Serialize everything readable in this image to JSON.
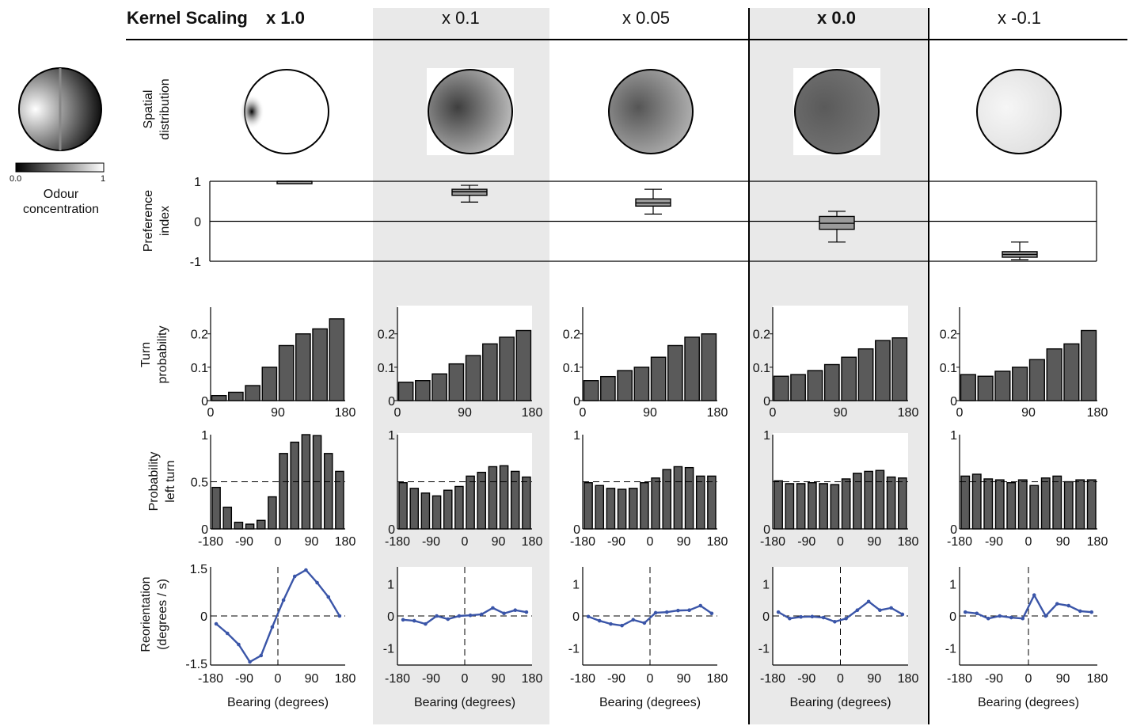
{
  "header": {
    "kernel_scaling_label": "Kernel Scaling",
    "columns": [
      "x 1.0",
      "x 0.1",
      "x 0.05",
      "x 0.0",
      "x -0.1"
    ]
  },
  "legend": {
    "colorbar_min": "0.0",
    "colorbar_max": "1",
    "title_line1": "Odour",
    "title_line2": "concentration"
  },
  "row_labels": {
    "spatial": [
      "Spatial",
      "distribution"
    ],
    "preference": [
      "Preference",
      "index"
    ],
    "turn": [
      "Turn",
      "probability"
    ],
    "left": [
      "Probability",
      "left turn"
    ],
    "reorient": [
      "Reorientation",
      "(degrees / s)"
    ]
  },
  "xlabel_bearing": "Bearing (degrees)",
  "colors": {
    "bar_fill": "#5a5a5a",
    "line_blue": "#3a55a8",
    "shade_gray": "#e9e9e9",
    "box_fill": "#9a9a9a"
  },
  "chart_data": [
    {
      "type": "box",
      "title": "Preference index",
      "ylabel": "Preference index",
      "ylim": [
        -1,
        1
      ],
      "yticks": [
        "1",
        "0",
        "-1"
      ],
      "categories": [
        "x 1.0",
        "x 0.1",
        "x 0.05",
        "x 0.0",
        "x -0.1"
      ],
      "boxes": [
        {
          "min": 0.99,
          "q1": 0.99,
          "median": 1.0,
          "q3": 1.0,
          "max": 1.0
        },
        {
          "min": 0.48,
          "q1": 0.65,
          "median": 0.74,
          "q3": 0.8,
          "max": 0.9
        },
        {
          "min": 0.18,
          "q1": 0.38,
          "median": 0.46,
          "q3": 0.56,
          "max": 0.8
        },
        {
          "min": -0.52,
          "q1": -0.2,
          "median": -0.05,
          "q3": 0.12,
          "max": 0.25
        },
        {
          "min": -0.96,
          "q1": -0.9,
          "median": -0.83,
          "q3": -0.76,
          "max": -0.52
        }
      ]
    },
    {
      "type": "bar",
      "title": "Turn probability",
      "ylabel": "Turn probability",
      "xlim": [
        0,
        180
      ],
      "ylim": [
        0,
        0.28
      ],
      "xticks": [
        "0",
        "90",
        "180"
      ],
      "yticks": [
        "0",
        "0.1",
        "0.2"
      ],
      "series": [
        {
          "name": "x 1.0",
          "values": [
            0.015,
            0.025,
            0.045,
            0.1,
            0.165,
            0.2,
            0.215,
            0.245
          ]
        },
        {
          "name": "x 0.1",
          "values": [
            0.055,
            0.06,
            0.08,
            0.11,
            0.135,
            0.17,
            0.19,
            0.21
          ]
        },
        {
          "name": "x 0.05",
          "values": [
            0.06,
            0.072,
            0.09,
            0.1,
            0.13,
            0.165,
            0.19,
            0.2
          ]
        },
        {
          "name": "x 0.0",
          "values": [
            0.073,
            0.078,
            0.09,
            0.108,
            0.13,
            0.155,
            0.18,
            0.188
          ]
        },
        {
          "name": "x -0.1",
          "values": [
            0.078,
            0.073,
            0.088,
            0.1,
            0.123,
            0.155,
            0.17,
            0.21
          ]
        }
      ]
    },
    {
      "type": "bar",
      "title": "Probability left turn",
      "ylabel": "Probability left turn",
      "xlim": [
        -180,
        180
      ],
      "ylim": [
        0,
        1
      ],
      "xticks": [
        "-180",
        "-90",
        "0",
        "90",
        "180"
      ],
      "yticks": [
        "0",
        "0.5",
        "1"
      ],
      "reference_line": 0.5,
      "series": [
        {
          "name": "x 1.0",
          "values": [
            0.44,
            0.23,
            0.07,
            0.05,
            0.09,
            0.34,
            0.8,
            0.92,
            1.0,
            0.99,
            0.8,
            0.61
          ]
        },
        {
          "name": "x 0.1",
          "values": [
            0.49,
            0.43,
            0.38,
            0.35,
            0.41,
            0.45,
            0.56,
            0.6,
            0.66,
            0.67,
            0.61,
            0.55
          ]
        },
        {
          "name": "x 0.05",
          "values": [
            0.49,
            0.46,
            0.43,
            0.42,
            0.43,
            0.49,
            0.54,
            0.63,
            0.66,
            0.65,
            0.56,
            0.56
          ]
        },
        {
          "name": "x 0.0",
          "values": [
            0.51,
            0.48,
            0.48,
            0.49,
            0.48,
            0.47,
            0.53,
            0.59,
            0.61,
            0.62,
            0.55,
            0.54
          ]
        },
        {
          "name": "x -0.1",
          "values": [
            0.56,
            0.58,
            0.53,
            0.52,
            0.49,
            0.52,
            0.46,
            0.54,
            0.56,
            0.5,
            0.52,
            0.52
          ]
        }
      ]
    },
    {
      "type": "line",
      "title": "Reorientation",
      "ylabel": "Reorientation (degrees / s)",
      "xlabel": "Bearing (degrees)",
      "xlim": [
        -180,
        180
      ],
      "xticks": [
        "-180",
        "-90",
        "0",
        "90",
        "180"
      ],
      "yticks_first": [
        "-1.5",
        "0",
        "1.5"
      ],
      "yticks_rest": [
        "-1",
        "0",
        "1"
      ],
      "ylim_first": [
        -1.5,
        1.5
      ],
      "ylim_rest": [
        -1.5,
        1.5
      ],
      "x": [
        -165,
        -135,
        -105,
        -75,
        -45,
        -15,
        15,
        45,
        75,
        105,
        135,
        165
      ],
      "series": [
        {
          "name": "x 1.0",
          "values": [
            -0.25,
            -0.55,
            -0.9,
            -1.45,
            -1.25,
            -0.35,
            0.5,
            1.25,
            1.45,
            1.05,
            0.6,
            0.0
          ]
        },
        {
          "name": "x 0.1",
          "values": [
            -0.12,
            -0.15,
            -0.25,
            0.0,
            -0.1,
            0.0,
            0.02,
            0.05,
            0.25,
            0.08,
            0.18,
            0.12
          ]
        },
        {
          "name": "x 0.05",
          "values": [
            -0.02,
            -0.15,
            -0.25,
            -0.3,
            -0.12,
            -0.22,
            0.1,
            0.12,
            0.17,
            0.18,
            0.32,
            0.08
          ]
        },
        {
          "name": "x 0.0",
          "values": [
            0.12,
            -0.08,
            -0.03,
            -0.02,
            -0.05,
            -0.18,
            -0.08,
            0.18,
            0.45,
            0.18,
            0.25,
            0.05
          ]
        },
        {
          "name": "x -0.1",
          "values": [
            0.12,
            0.08,
            -0.08,
            0.0,
            -0.05,
            -0.08,
            0.65,
            0.0,
            0.38,
            0.32,
            0.15,
            0.12
          ]
        }
      ]
    }
  ]
}
